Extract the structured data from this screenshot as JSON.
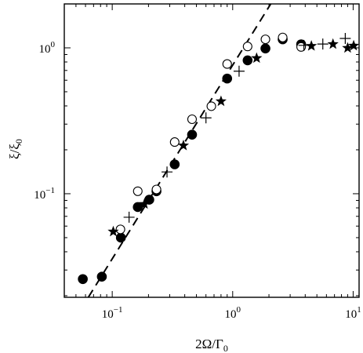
{
  "chart_data": {
    "type": "scatter",
    "xlabel": "2Ω/Γ",
    "xlabel_sub": "0",
    "ylabel": "ξ/ξ",
    "ylabel_sub": "0",
    "xscale": "log",
    "yscale": "log",
    "xlim": [
      0.04,
      11.2
    ],
    "ylim": [
      0.0195,
      2.0
    ],
    "grid": false,
    "x_ticks": [
      {
        "value": 0.1,
        "base": "10",
        "exp": "−1"
      },
      {
        "value": 1,
        "base": "10",
        "exp": "0"
      },
      {
        "value": 10,
        "base": "10",
        "exp": "1"
      }
    ],
    "y_ticks": [
      {
        "value": 0.1,
        "base": "10",
        "exp": "−1"
      },
      {
        "value": 1,
        "base": "10",
        "exp": "0"
      }
    ],
    "series": [
      {
        "marker": "filled-circle",
        "color": "#000000",
        "points": [
          [
            0.057,
            0.026
          ],
          [
            0.082,
            0.027
          ],
          [
            0.118,
            0.05
          ],
          [
            0.163,
            0.081
          ],
          [
            0.203,
            0.091
          ],
          [
            0.233,
            0.104
          ],
          [
            0.33,
            0.159
          ],
          [
            0.46,
            0.254
          ],
          [
            0.9,
            0.616
          ],
          [
            1.33,
            0.821
          ],
          [
            1.87,
            0.99
          ],
          [
            2.6,
            1.144
          ],
          [
            3.7,
            1.057
          ]
        ]
      },
      {
        "marker": "open-circle",
        "color": "#000000",
        "points": [
          [
            0.117,
            0.057
          ],
          [
            0.163,
            0.104
          ],
          [
            0.233,
            0.107
          ],
          [
            0.33,
            0.226
          ],
          [
            0.46,
            0.324
          ],
          [
            0.665,
            0.398
          ],
          [
            0.9,
            0.775
          ],
          [
            1.33,
            1.022
          ],
          [
            1.87,
            1.144
          ],
          [
            2.6,
            1.178
          ],
          [
            3.7,
            1.014
          ]
        ]
      },
      {
        "marker": "plus",
        "color": "#000000",
        "points": [
          [
            0.138,
            0.069
          ],
          [
            0.285,
            0.141
          ],
          [
            0.6,
            0.331
          ],
          [
            1.13,
            0.692
          ],
          [
            3.9,
            1.04
          ],
          [
            5.6,
            1.062
          ],
          [
            8.6,
            1.16
          ]
        ]
      },
      {
        "marker": "star",
        "color": "#000000",
        "points": [
          [
            0.102,
            0.055
          ],
          [
            0.185,
            0.085
          ],
          [
            0.39,
            0.214
          ],
          [
            0.8,
            0.43
          ],
          [
            1.58,
            0.85
          ],
          [
            4.5,
            1.03
          ],
          [
            6.8,
            1.06
          ],
          [
            9.0,
            0.998
          ],
          [
            10.1,
            1.034
          ]
        ]
      }
    ],
    "fit_line": {
      "style": "dashed",
      "color": "#000000",
      "slope": 1.4,
      "points": [
        [
          0.0633,
          0.0195
        ],
        [
          2.07,
          2.0
        ]
      ]
    }
  }
}
